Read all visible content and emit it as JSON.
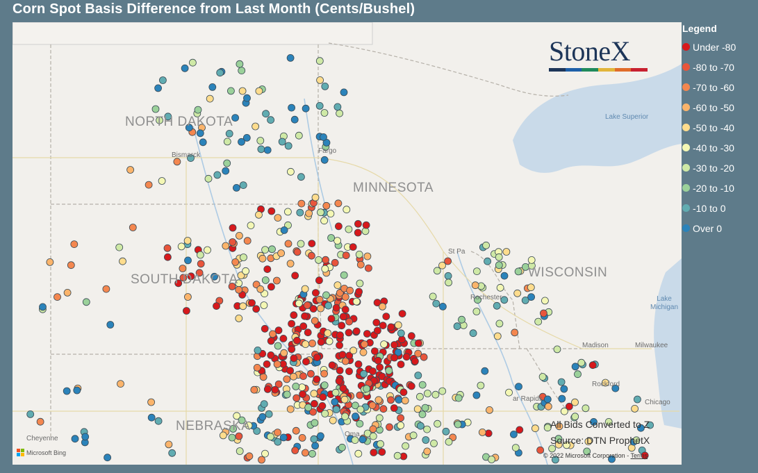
{
  "title": "Corn Spot Basis Difference from Last Month (Cents/Bushel)",
  "map": {
    "states": [
      "NORTH DAKOTA",
      "MINNESOTA",
      "SOUTH DAKOTA",
      "WISCONSIN",
      "NEBRASKA"
    ],
    "cities": [
      "Bismarck",
      "Fargo",
      "St Pa",
      "Rochester",
      "Madison",
      "Milwaukee",
      "Rockford",
      "ar Rapids",
      "Chicago",
      "Cheyenne",
      "Oma"
    ],
    "lakes": [
      "Lake Superior",
      "Lake Michigan"
    ],
    "logo": "StoneX",
    "logo_colors": [
      "#1d3558",
      "#1d5fa8",
      "#1f8a5b",
      "#e2b53a",
      "#e06c2a",
      "#c8202f"
    ],
    "notes": [
      "All Bids Converted to Z",
      "Source: DTN ProphetX"
    ],
    "attribution": "Microsoft Bing",
    "copyright": "© 2022 Microsoft Corporation",
    "terms": "Terms"
  },
  "legend": {
    "title": "Legend",
    "items": [
      {
        "label": "Under -80",
        "color": "#d7191c"
      },
      {
        "label": "-80 to -70",
        "color": "#e8553b"
      },
      {
        "label": "-70 to -60",
        "color": "#f4874f"
      },
      {
        "label": "-60 to -50",
        "color": "#fbb46b"
      },
      {
        "label": "-50 to -40",
        "color": "#fedc8d"
      },
      {
        "label": "-40 to -30",
        "color": "#f4f7b4"
      },
      {
        "label": "-30 to -20",
        "color": "#cfe9a6"
      },
      {
        "label": "-20 to -10",
        "color": "#9bd19a"
      },
      {
        "label": "-10 to 0",
        "color": "#61acb1"
      },
      {
        "label": "Over 0",
        "color": "#2b83ba"
      }
    ]
  }
}
